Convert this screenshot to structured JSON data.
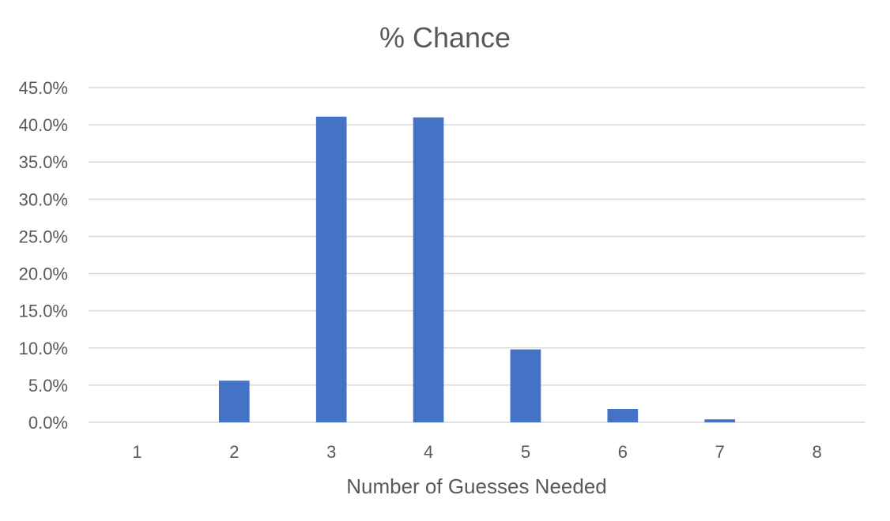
{
  "chart_data": {
    "type": "bar",
    "title": "% Chance",
    "xlabel": "Number of Guesses Needed",
    "ylabel": "",
    "categories": [
      "1",
      "2",
      "3",
      "4",
      "5",
      "6",
      "7",
      "8"
    ],
    "values": [
      0.0,
      5.6,
      41.1,
      41.0,
      9.8,
      1.8,
      0.4,
      0.0
    ],
    "ylim": [
      0,
      45
    ],
    "ytick_step": 5,
    "ytick_labels": [
      "0.0%",
      "5.0%",
      "10.0%",
      "15.0%",
      "20.0%",
      "25.0%",
      "30.0%",
      "35.0%",
      "40.0%",
      "45.0%"
    ],
    "grid": true,
    "legend": "none",
    "bar_color": "#4472C4"
  }
}
